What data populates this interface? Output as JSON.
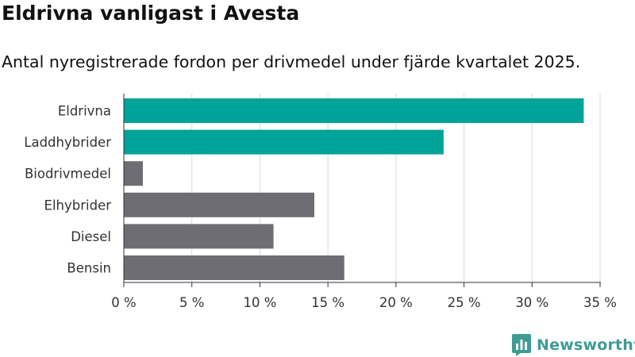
{
  "header": {
    "title": "Eldrivna vanligast i Avesta",
    "subtitle": "Antal nyregistrerade fordon per drivmedel under fjärde kvartalet 2025."
  },
  "brand": {
    "name": "Newsworthy",
    "color": "#3f9c95",
    "icon": "newsworthy-logo-icon"
  },
  "chart_data": {
    "type": "bar",
    "orientation": "horizontal",
    "categories": [
      "Eldrivna",
      "Laddhybrider",
      "Biodrivmedel",
      "Elhybrider",
      "Diesel",
      "Bensin"
    ],
    "values": [
      33.8,
      23.5,
      1.4,
      14.0,
      11.0,
      16.2
    ],
    "colors": [
      "#00a398",
      "#00a398",
      "#6e6d73",
      "#6e6d73",
      "#6e6d73",
      "#6e6d73"
    ],
    "xlim": [
      0,
      35
    ],
    "xticks": [
      0,
      5,
      10,
      15,
      20,
      25,
      30,
      35
    ],
    "xtick_labels": [
      "0 %",
      "5 %",
      "10 %",
      "15 %",
      "20 %",
      "25 %",
      "30 %",
      "35 %"
    ],
    "xlabel": "",
    "ylabel": "",
    "grid": true
  }
}
